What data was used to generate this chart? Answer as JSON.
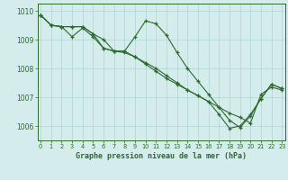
{
  "xlabel": "Graphe pression niveau de la mer (hPa)",
  "ylim": [
    1005.5,
    1010.25
  ],
  "xlim": [
    -0.3,
    23.3
  ],
  "yticks": [
    1006,
    1007,
    1008,
    1009,
    1010
  ],
  "xticks": [
    0,
    1,
    2,
    3,
    4,
    5,
    6,
    7,
    8,
    9,
    10,
    11,
    12,
    13,
    14,
    15,
    16,
    17,
    18,
    19,
    20,
    21,
    22,
    23
  ],
  "bg_color": "#d4ecec",
  "grid_color": "#b0d4d4",
  "line_color": "#2d6a2d",
  "line1_x": [
    0,
    1,
    2,
    3,
    4,
    5,
    6,
    7,
    8,
    9,
    10,
    11,
    12,
    13,
    14,
    15,
    16,
    17,
    18,
    19,
    20,
    21,
    22,
    23
  ],
  "line1_y": [
    1009.85,
    1009.5,
    1009.45,
    1009.45,
    1009.45,
    1009.2,
    1009.0,
    1008.6,
    1008.6,
    1009.1,
    1009.65,
    1009.55,
    1009.15,
    1008.55,
    1008.0,
    1007.55,
    1007.1,
    1006.65,
    1006.2,
    1005.95,
    1006.35,
    1006.95,
    1007.45,
    1007.3
  ],
  "line2_x": [
    0,
    1,
    2,
    3,
    4,
    5,
    6,
    7,
    8,
    9,
    10,
    11,
    12,
    13,
    14,
    15,
    16,
    17,
    18,
    19,
    20,
    21,
    22,
    23
  ],
  "line2_y": [
    1009.85,
    1009.5,
    1009.45,
    1009.1,
    1009.4,
    1009.1,
    1008.7,
    1008.6,
    1008.55,
    1008.4,
    1008.2,
    1008.0,
    1007.75,
    1007.5,
    1007.25,
    1007.05,
    1006.85,
    1006.65,
    1006.45,
    1006.3,
    1006.1,
    1007.1,
    1007.35,
    1007.25
  ],
  "line3_x": [
    0,
    1,
    2,
    3,
    4,
    5,
    6,
    7,
    8,
    9,
    10,
    11,
    12,
    13,
    14,
    15,
    16,
    17,
    18,
    19,
    20,
    21,
    22,
    23
  ],
  "line3_y": [
    1009.85,
    1009.5,
    1009.45,
    1009.45,
    1009.45,
    1009.2,
    1008.7,
    1008.6,
    1008.6,
    1008.4,
    1008.15,
    1007.9,
    1007.65,
    1007.45,
    1007.25,
    1007.05,
    1006.85,
    1006.4,
    1005.92,
    1006.0,
    1006.4,
    1006.95,
    1007.45,
    1007.3
  ]
}
